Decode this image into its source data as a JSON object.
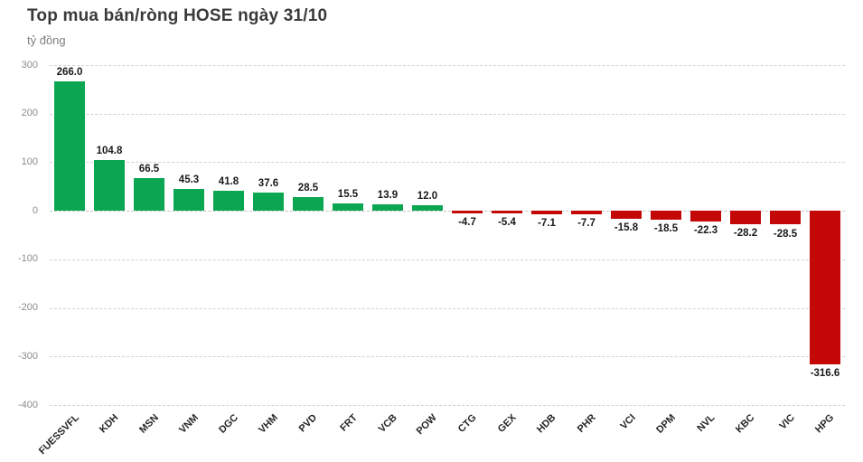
{
  "chart_data": {
    "type": "bar",
    "title": "Top mua bán/ròng HOSE ngày 31/10",
    "ylabel": "tỷ đồng",
    "xlabel": "",
    "categories": [
      "FUESSVFL",
      "KDH",
      "MSN",
      "VNM",
      "DGC",
      "VHM",
      "PVD",
      "FRT",
      "VCB",
      "POW",
      "CTG",
      "GEX",
      "HDB",
      "PHR",
      "VCI",
      "DPM",
      "NVL",
      "KBC",
      "VIC",
      "HPG"
    ],
    "values": [
      266.0,
      104.8,
      66.5,
      45.3,
      41.8,
      37.6,
      28.5,
      15.5,
      13.9,
      12.0,
      -4.7,
      -5.4,
      -7.1,
      -7.7,
      -15.8,
      -18.5,
      -22.3,
      -28.2,
      -28.5,
      -316.6
    ],
    "value_label_decimals": 1,
    "ylim": [
      -400,
      300
    ],
    "yticks": [
      300,
      200,
      100,
      0,
      -100,
      -200,
      -300,
      -400
    ],
    "grid": true,
    "legend": false,
    "positive_color": "#0aa652",
    "negative_color": "#c40808",
    "title_color": "#3a3a3a",
    "axis_text_color": "#8c8c8c",
    "label_text_color": "#1a1a1a"
  }
}
